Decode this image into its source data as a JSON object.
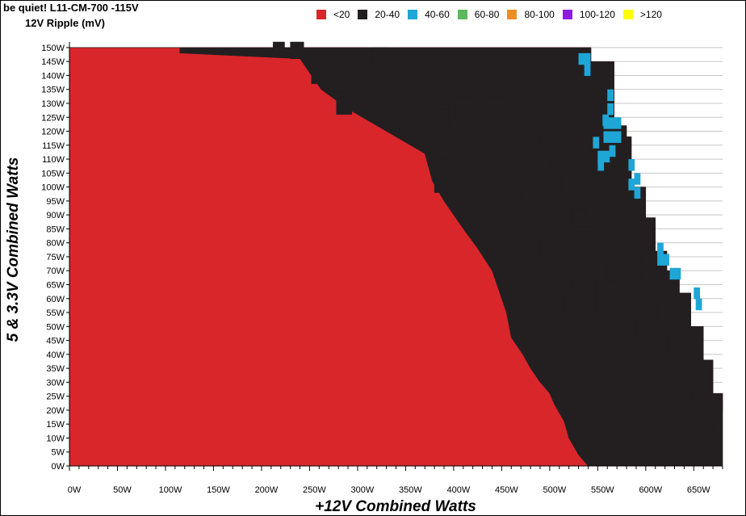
{
  "title": "be quiet! L11-CM-700 -115V",
  "subtitle": "12V Ripple (mV)",
  "chart_data": {
    "type": "heatmap",
    "xlabel": "+12V Combined Watts",
    "ylabel": "5 & 3.3V Combined Watts",
    "x_ticks": [
      "0W",
      "50W",
      "100W",
      "150W",
      "200W",
      "250W",
      "300W",
      "350W",
      "400W",
      "450W",
      "500W",
      "550W",
      "600W",
      "650W"
    ],
    "y_ticks": [
      "0W",
      "5W",
      "10W",
      "15W",
      "20W",
      "25W",
      "30W",
      "35W",
      "40W",
      "45W",
      "50W",
      "55W",
      "60W",
      "65W",
      "70W",
      "75W",
      "80W",
      "85W",
      "90W",
      "95W",
      "100W",
      "105W",
      "110W",
      "115W",
      "120W",
      "125W",
      "130W",
      "135W",
      "140W",
      "145W",
      "150W"
    ],
    "xlim": [
      0,
      680
    ],
    "ylim": [
      0,
      152
    ],
    "legend": [
      {
        "label": "<20",
        "color": "#d9262b"
      },
      {
        "label": "20-40",
        "color": "#231f20"
      },
      {
        "label": "40-60",
        "color": "#1ea6d6"
      },
      {
        "label": "60-80",
        "color": "#5cb85c"
      },
      {
        "label": "80-100",
        "color": "#ee8e20"
      },
      {
        "label": "100-120",
        "color": "#8b1ce0"
      },
      {
        "label": ">120",
        "color": "#ffff00"
      }
    ],
    "max_load_boundary": [
      [
        0,
        150
      ],
      [
        543,
        150
      ],
      [
        543,
        145
      ],
      [
        567,
        145
      ],
      [
        567,
        122
      ],
      [
        580,
        122
      ],
      [
        580,
        118
      ],
      [
        585,
        118
      ],
      [
        585,
        100
      ],
      [
        600,
        100
      ],
      [
        600,
        89
      ],
      [
        610,
        89
      ],
      [
        610,
        77
      ],
      [
        622,
        77
      ],
      [
        622,
        70
      ],
      [
        635,
        70
      ],
      [
        635,
        62
      ],
      [
        647,
        62
      ],
      [
        647,
        50
      ],
      [
        660,
        50
      ],
      [
        660,
        38
      ],
      [
        670,
        38
      ],
      [
        670,
        26
      ],
      [
        680,
        26
      ],
      [
        680,
        0
      ]
    ],
    "band_20_40_start": [
      [
        0,
        150
      ],
      [
        115,
        150
      ],
      [
        115,
        148
      ],
      [
        116,
        148
      ],
      [
        240,
        146
      ],
      [
        262,
        135
      ],
      [
        290,
        128
      ],
      [
        330,
        120
      ],
      [
        370,
        112
      ],
      [
        378,
        102
      ],
      [
        390,
        95
      ],
      [
        410,
        85
      ],
      [
        425,
        78
      ],
      [
        440,
        70
      ],
      [
        448,
        62
      ],
      [
        455,
        55
      ],
      [
        460,
        46
      ],
      [
        472,
        40
      ],
      [
        480,
        35
      ],
      [
        490,
        30
      ],
      [
        500,
        26
      ],
      [
        505,
        22
      ],
      [
        515,
        16
      ],
      [
        520,
        10
      ],
      [
        530,
        4
      ],
      [
        540,
        0
      ]
    ],
    "band_40_60_cells": [
      [
        530,
        148
      ],
      [
        536,
        148
      ],
      [
        536,
        144
      ],
      [
        560,
        135
      ],
      [
        560,
        130
      ],
      [
        556,
        125
      ],
      [
        562,
        125
      ],
      [
        568,
        125
      ],
      [
        556,
        120
      ],
      [
        562,
        120
      ],
      [
        568,
        120
      ],
      [
        562,
        115
      ],
      [
        556,
        113
      ],
      [
        550,
        113
      ],
      [
        545,
        118
      ],
      [
        550,
        110
      ],
      [
        582,
        110
      ],
      [
        588,
        105
      ],
      [
        582,
        103
      ],
      [
        588,
        100
      ],
      [
        612,
        80
      ],
      [
        612,
        76
      ],
      [
        618,
        76
      ],
      [
        625,
        71
      ],
      [
        630,
        71
      ],
      [
        650,
        64
      ],
      [
        652,
        60
      ],
      [
        555,
        126
      ]
    ],
    "islands_20_40": [
      [
        [
          212,
          152
        ],
        [
          224,
          152
        ],
        [
          224,
          148
        ],
        [
          212,
          148
        ]
      ],
      [
        [
          230,
          152
        ],
        [
          244,
          152
        ],
        [
          244,
          146
        ],
        [
          230,
          146
        ]
      ],
      [
        [
          268,
          146
        ],
        [
          288,
          146
        ],
        [
          292,
          140
        ],
        [
          290,
          134
        ],
        [
          276,
          134
        ],
        [
          270,
          140
        ]
      ],
      [
        [
          252,
          142
        ],
        [
          268,
          142
        ],
        [
          268,
          137
        ],
        [
          252,
          137
        ]
      ],
      [
        [
          316,
          150
        ],
        [
          330,
          150
        ],
        [
          332,
          144
        ],
        [
          316,
          144
        ]
      ],
      [
        [
          345,
          148
        ],
        [
          366,
          148
        ],
        [
          366,
          140
        ],
        [
          345,
          140
        ]
      ],
      [
        [
          278,
          132
        ],
        [
          294,
          132
        ],
        [
          294,
          126
        ],
        [
          278,
          126
        ]
      ],
      [
        [
          300,
          138
        ],
        [
          322,
          138
        ],
        [
          322,
          130
        ],
        [
          300,
          130
        ]
      ],
      [
        [
          322,
          132
        ],
        [
          330,
          132
        ],
        [
          330,
          126
        ],
        [
          322,
          126
        ]
      ],
      [
        [
          332,
          126
        ],
        [
          344,
          126
        ],
        [
          344,
          122
        ],
        [
          332,
          122
        ]
      ],
      [
        [
          355,
          140
        ],
        [
          376,
          140
        ],
        [
          380,
          132
        ],
        [
          376,
          127
        ],
        [
          355,
          127
        ]
      ],
      [
        [
          370,
          132
        ],
        [
          385,
          132
        ],
        [
          385,
          122
        ],
        [
          370,
          122
        ]
      ],
      [
        [
          380,
          128
        ],
        [
          395,
          128
        ],
        [
          395,
          120
        ],
        [
          380,
          120
        ]
      ],
      [
        [
          402,
          132
        ],
        [
          426,
          132
        ],
        [
          426,
          124
        ],
        [
          402,
          124
        ]
      ],
      [
        [
          430,
          132
        ],
        [
          455,
          132
        ],
        [
          455,
          124
        ],
        [
          430,
          124
        ]
      ],
      [
        [
          458,
          126
        ],
        [
          476,
          126
        ],
        [
          476,
          118
        ],
        [
          458,
          118
        ]
      ],
      [
        [
          380,
          110
        ],
        [
          398,
          110
        ],
        [
          398,
          98
        ],
        [
          380,
          98
        ]
      ],
      [
        [
          402,
          100
        ],
        [
          412,
          100
        ],
        [
          412,
          98
        ],
        [
          402,
          98
        ]
      ],
      [
        [
          440,
          118
        ],
        [
          460,
          118
        ],
        [
          460,
          115
        ],
        [
          440,
          115
        ]
      ],
      [
        [
          476,
          120
        ],
        [
          490,
          120
        ],
        [
          490,
          115
        ],
        [
          476,
          115
        ]
      ],
      [
        [
          488,
          112
        ],
        [
          500,
          112
        ],
        [
          500,
          106
        ],
        [
          488,
          106
        ]
      ],
      [
        [
          510,
          110
        ],
        [
          515,
          110
        ],
        [
          515,
          104
        ],
        [
          510,
          104
        ]
      ],
      [
        [
          512,
          104
        ],
        [
          530,
          104
        ],
        [
          530,
          96
        ],
        [
          512,
          96
        ]
      ],
      [
        [
          522,
          92
        ],
        [
          538,
          92
        ],
        [
          538,
          85
        ],
        [
          522,
          85
        ]
      ],
      [
        [
          536,
          88
        ],
        [
          550,
          88
        ],
        [
          552,
          84
        ],
        [
          540,
          84
        ]
      ],
      [
        [
          498,
          80
        ],
        [
          510,
          80
        ],
        [
          510,
          78
        ],
        [
          498,
          78
        ]
      ],
      [
        [
          508,
          78
        ],
        [
          520,
          78
        ],
        [
          520,
          72
        ],
        [
          508,
          72
        ]
      ],
      [
        [
          528,
          86
        ],
        [
          542,
          86
        ],
        [
          542,
          80
        ],
        [
          528,
          80
        ]
      ],
      [
        [
          530,
          84
        ],
        [
          546,
          84
        ],
        [
          546,
          72
        ],
        [
          530,
          72
        ]
      ],
      [
        [
          545,
          78
        ],
        [
          555,
          78
        ],
        [
          555,
          72
        ],
        [
          545,
          72
        ]
      ],
      [
        [
          560,
          74
        ],
        [
          572,
          74
        ],
        [
          572,
          66
        ],
        [
          560,
          66
        ]
      ],
      [
        [
          588,
          76
        ],
        [
          596,
          76
        ],
        [
          596,
          70
        ],
        [
          588,
          70
        ]
      ],
      [
        [
          596,
          70
        ],
        [
          606,
          70
        ],
        [
          606,
          64
        ],
        [
          596,
          64
        ]
      ],
      [
        [
          610,
          64
        ],
        [
          620,
          64
        ],
        [
          620,
          58
        ],
        [
          610,
          58
        ]
      ],
      [
        [
          522,
          68
        ],
        [
          530,
          68
        ],
        [
          530,
          64
        ],
        [
          522,
          64
        ]
      ],
      [
        [
          536,
          66
        ],
        [
          548,
          66
        ],
        [
          548,
          60
        ],
        [
          536,
          60
        ]
      ],
      [
        [
          540,
          60
        ],
        [
          548,
          60
        ],
        [
          548,
          56
        ],
        [
          540,
          56
        ]
      ],
      [
        [
          590,
          52
        ],
        [
          600,
          52
        ],
        [
          600,
          46
        ],
        [
          590,
          46
        ]
      ],
      [
        [
          602,
          58
        ],
        [
          612,
          58
        ],
        [
          612,
          52
        ],
        [
          602,
          52
        ]
      ],
      [
        [
          622,
          46
        ],
        [
          630,
          46
        ],
        [
          630,
          40
        ],
        [
          622,
          40
        ]
      ],
      [
        [
          648,
          28
        ],
        [
          660,
          28
        ],
        [
          660,
          24
        ],
        [
          648,
          24
        ]
      ],
      [
        [
          668,
          26
        ],
        [
          680,
          26
        ],
        [
          680,
          20
        ],
        [
          668,
          20
        ]
      ],
      [
        [
          655,
          16
        ],
        [
          670,
          16
        ],
        [
          670,
          10
        ],
        [
          655,
          10
        ]
      ],
      [
        [
          662,
          16
        ],
        [
          674,
          16
        ],
        [
          674,
          20
        ],
        [
          662,
          20
        ]
      ],
      [
        [
          456,
          98
        ],
        [
          470,
          98
        ],
        [
          470,
          96
        ],
        [
          456,
          96
        ]
      ],
      [
        [
          484,
          80
        ],
        [
          490,
          80
        ],
        [
          490,
          76
        ],
        [
          484,
          76
        ]
      ],
      [
        [
          480,
          84
        ],
        [
          484,
          84
        ],
        [
          484,
          80
        ],
        [
          480,
          80
        ]
      ],
      [
        [
          502,
          60
        ],
        [
          516,
          60
        ],
        [
          516,
          54
        ],
        [
          502,
          54
        ]
      ],
      [
        [
          516,
          62
        ],
        [
          526,
          62
        ],
        [
          526,
          58
        ],
        [
          516,
          58
        ]
      ]
    ]
  }
}
